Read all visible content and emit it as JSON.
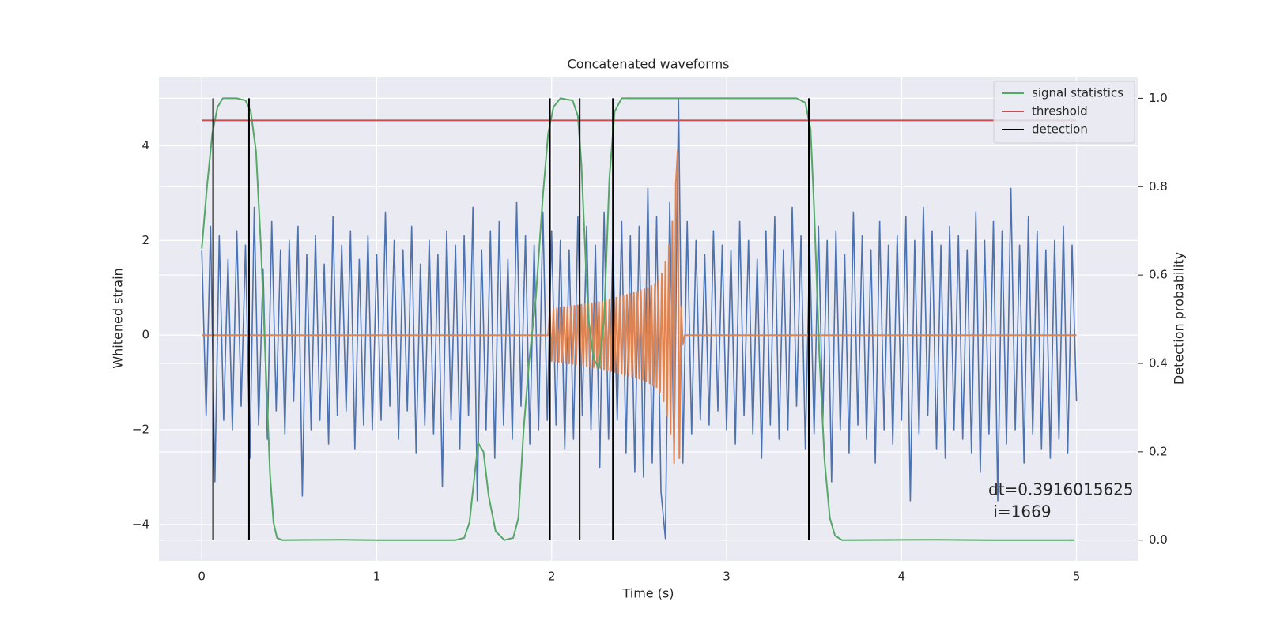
{
  "chart_data": {
    "type": "line",
    "title": "Concatenated waveforms",
    "xlabel": "Time (s)",
    "ylabel": "Whitened strain",
    "y2label": "Detection probability",
    "annotation": [
      "dt=0.3916015625",
      " i=1669"
    ],
    "xlim": [
      -0.245,
      5.35
    ],
    "xticks": [
      0,
      1,
      2,
      3,
      4,
      5
    ],
    "ylim": [
      -4.77,
      5.46
    ],
    "yticks": [
      {
        "value": -4,
        "label": "−4"
      },
      {
        "value": -2,
        "label": "−2"
      },
      0,
      2,
      4
    ],
    "y2lim": [
      -0.047,
      1.049
    ],
    "y2ticks": [
      {
        "value": 0,
        "label": "0.0"
      },
      0.2,
      0.4,
      0.6,
      0.8,
      {
        "value": 1,
        "label": "1.0"
      }
    ],
    "grid": true,
    "legend": "upper right",
    "series": [
      {
        "color": "#4c72b0",
        "x": [
          0,
          0.025,
          0.05,
          0.075,
          0.1,
          0.125,
          0.15,
          0.175,
          0.2,
          0.225,
          0.25,
          0.275,
          0.3,
          0.325,
          0.35,
          0.375,
          0.4,
          0.425,
          0.45,
          0.475,
          0.5,
          0.525,
          0.55,
          0.575,
          0.6,
          0.625,
          0.65,
          0.675,
          0.7,
          0.725,
          0.75,
          0.775,
          0.8,
          0.825,
          0.85,
          0.875,
          0.9,
          0.925,
          0.95,
          0.975,
          1,
          1.025,
          1.05,
          1.075,
          1.1,
          1.125,
          1.15,
          1.175,
          1.2,
          1.225,
          1.25,
          1.275,
          1.3,
          1.325,
          1.35,
          1.375,
          1.4,
          1.425,
          1.45,
          1.475,
          1.5,
          1.525,
          1.55,
          1.575,
          1.6,
          1.625,
          1.65,
          1.675,
          1.7,
          1.725,
          1.75,
          1.775,
          1.8,
          1.825,
          1.85,
          1.875,
          1.9,
          1.925,
          1.95,
          1.975,
          2,
          2.025,
          2.05,
          2.075,
          2.1,
          2.125,
          2.15,
          2.175,
          2.2,
          2.225,
          2.25,
          2.275,
          2.3,
          2.325,
          2.35,
          2.375,
          2.4,
          2.425,
          2.45,
          2.475,
          2.5,
          2.525,
          2.55,
          2.575,
          2.6,
          2.625,
          2.65,
          2.675,
          2.7,
          2.725,
          2.75,
          2.775,
          2.8,
          2.825,
          2.85,
          2.875,
          2.9,
          2.925,
          2.95,
          2.975,
          3,
          3.025,
          3.05,
          3.075,
          3.1,
          3.125,
          3.15,
          3.175,
          3.2,
          3.225,
          3.25,
          3.275,
          3.3,
          3.325,
          3.35,
          3.375,
          3.4,
          3.425,
          3.45,
          3.475,
          3.5,
          3.525,
          3.55,
          3.575,
          3.6,
          3.625,
          3.65,
          3.675,
          3.7,
          3.725,
          3.75,
          3.775,
          3.8,
          3.825,
          3.85,
          3.875,
          3.9,
          3.925,
          3.95,
          3.975,
          4,
          4.025,
          4.05,
          4.075,
          4.1,
          4.125,
          4.15,
          4.175,
          4.2,
          4.225,
          4.25,
          4.275,
          4.3,
          4.325,
          4.35,
          4.375,
          4.4,
          4.425,
          4.45,
          4.475,
          4.5,
          4.525,
          4.55,
          4.575,
          4.6,
          4.625,
          4.65,
          4.675,
          4.7,
          4.725,
          4.75,
          4.775,
          4.8,
          4.825,
          4.85,
          4.875,
          4.9,
          4.925,
          4.95,
          4.975,
          5
        ],
        "values": [
          1.8,
          -1.7,
          2.3,
          -3.1,
          2.1,
          -1.8,
          1.6,
          -2.0,
          2.2,
          -1.5,
          1.9,
          -2.6,
          2.7,
          -1.9,
          1.4,
          -2.2,
          2.4,
          -1.6,
          1.8,
          -2.1,
          2.0,
          -1.4,
          2.3,
          -3.4,
          1.7,
          -2.0,
          2.1,
          -1.8,
          1.5,
          -2.3,
          2.5,
          -1.7,
          1.9,
          -1.6,
          2.2,
          -2.4,
          1.6,
          -1.9,
          2.1,
          -2.0,
          1.7,
          -1.8,
          2.6,
          -1.5,
          2.0,
          -2.2,
          1.8,
          -1.6,
          2.3,
          -2.5,
          1.5,
          -1.9,
          2.0,
          -2.1,
          1.7,
          -3.2,
          2.2,
          -1.8,
          1.9,
          -2.4,
          2.1,
          -1.7,
          2.7,
          -3.5,
          1.8,
          -2.0,
          2.2,
          -2.6,
          2.4,
          -1.9,
          1.6,
          -2.2,
          2.8,
          -1.5,
          2.1,
          -2.3,
          1.9,
          -2.0,
          2.6,
          -1.8,
          2.2,
          -1.9,
          2.0,
          -2.4,
          1.8,
          -2.2,
          2.5,
          -1.7,
          2.3,
          -2.0,
          1.9,
          -2.8,
          2.6,
          -2.2,
          2.0,
          -1.8,
          2.4,
          -2.5,
          2.1,
          -2.9,
          2.3,
          -3.0,
          3.1,
          -2.7,
          2.5,
          -3.3,
          -4.3,
          2.8,
          -2.6,
          5.0,
          -2.7,
          2.4,
          -2.1,
          2.0,
          -1.8,
          1.7,
          -1.9,
          2.2,
          -1.6,
          1.9,
          -2.0,
          1.8,
          -2.3,
          2.4,
          -1.7,
          2.0,
          -2.1,
          1.6,
          -2.6,
          2.2,
          -1.9,
          2.5,
          -2.2,
          1.8,
          -2.0,
          2.7,
          -1.5,
          2.1,
          -2.4,
          1.9,
          -2.1,
          2.3,
          -1.8,
          2.0,
          -3.1,
          2.2,
          -2.0,
          1.7,
          -2.5,
          2.6,
          -1.9,
          2.1,
          -2.2,
          1.8,
          -2.7,
          2.4,
          -2.0,
          1.9,
          -2.3,
          2.1,
          -1.8,
          2.5,
          -3.5,
          2.0,
          -2.1,
          2.7,
          -1.7,
          2.2,
          -2.4,
          1.9,
          -2.6,
          2.3,
          -2.0,
          2.1,
          -2.2,
          1.8,
          -2.5,
          2.6,
          -2.9,
          2.0,
          -2.1,
          2.4,
          -3.5,
          2.2,
          -2.3,
          3.1,
          -2.0,
          1.9,
          -2.7,
          2.5,
          -2.1,
          2.2,
          -2.4,
          1.8,
          -2.6,
          2.0,
          -2.2,
          2.3,
          -2.5,
          1.9,
          -1.4
        ]
      },
      {
        "color": "#dd8452",
        "x": [
          0,
          1.98,
          1.99,
          2.0,
          2.01,
          2.02,
          2.03,
          2.04,
          2.05,
          2.06,
          2.07,
          2.08,
          2.09,
          2.1,
          2.11,
          2.12,
          2.13,
          2.14,
          2.15,
          2.16,
          2.17,
          2.18,
          2.19,
          2.2,
          2.21,
          2.22,
          2.23,
          2.24,
          2.25,
          2.26,
          2.27,
          2.28,
          2.29,
          2.3,
          2.31,
          2.32,
          2.33,
          2.34,
          2.35,
          2.36,
          2.37,
          2.38,
          2.39,
          2.4,
          2.41,
          2.42,
          2.43,
          2.44,
          2.45,
          2.46,
          2.47,
          2.48,
          2.49,
          2.5,
          2.51,
          2.52,
          2.53,
          2.54,
          2.55,
          2.56,
          2.57,
          2.58,
          2.59,
          2.6,
          2.61,
          2.62,
          2.63,
          2.64,
          2.65,
          2.66,
          2.67,
          2.68,
          2.69,
          2.7,
          2.71,
          2.72,
          2.73,
          2.74,
          2.75,
          2.76,
          5
        ],
        "values": [
          0,
          0,
          0.55,
          -0.55,
          0.56,
          -0.56,
          0.57,
          -0.57,
          0.58,
          -0.58,
          0.59,
          -0.59,
          0.6,
          -0.6,
          0.61,
          -0.61,
          0.62,
          -0.62,
          0.63,
          -0.63,
          0.64,
          -0.64,
          0.65,
          -0.66,
          0.66,
          -0.67,
          0.67,
          -0.68,
          0.68,
          -0.69,
          0.7,
          -0.7,
          0.71,
          -0.72,
          0.73,
          -0.74,
          0.75,
          -0.76,
          0.77,
          -0.78,
          0.79,
          -0.8,
          0.81,
          -0.82,
          0.83,
          -0.84,
          0.85,
          -0.86,
          0.87,
          -0.88,
          0.89,
          -0.9,
          0.91,
          -0.92,
          0.94,
          -0.95,
          0.97,
          -0.98,
          1.0,
          -1.02,
          1.04,
          -1.06,
          1.08,
          -1.1,
          1.15,
          -1.2,
          1.3,
          -1.4,
          1.55,
          -1.7,
          1.9,
          -2.1,
          2.4,
          -2.7,
          3.2,
          3.9,
          -2.6,
          0.6,
          -0.2,
          0,
          0
        ]
      },
      {
        "name": "signal statistics",
        "color": "#55a868",
        "axis": "y2",
        "x": [
          0,
          0.03,
          0.06,
          0.09,
          0.12,
          0.2,
          0.25,
          0.28,
          0.31,
          0.34,
          0.37,
          0.39,
          0.41,
          0.43,
          0.46,
          0.8,
          1.0,
          1.45,
          1.5,
          1.53,
          1.56,
          1.58,
          1.61,
          1.64,
          1.68,
          1.73,
          1.78,
          1.81,
          1.84,
          1.87,
          1.91,
          1.95,
          1.98,
          2.01,
          2.05,
          2.12,
          2.15,
          2.17,
          2.19,
          2.21,
          2.24,
          2.27,
          2.3,
          2.33,
          2.36,
          2.4,
          3.4,
          3.45,
          3.48,
          3.5,
          3.53,
          3.56,
          3.59,
          3.62,
          3.66,
          4.2,
          4.5,
          4.99
        ],
        "values": [
          0.66,
          0.8,
          0.92,
          0.98,
          1.0,
          1.0,
          0.995,
          0.97,
          0.88,
          0.65,
          0.35,
          0.15,
          0.04,
          0.005,
          0,
          0.001,
          0,
          0,
          0.005,
          0.04,
          0.15,
          0.22,
          0.2,
          0.1,
          0.02,
          0,
          0.005,
          0.05,
          0.25,
          0.4,
          0.55,
          0.78,
          0.92,
          0.98,
          1.0,
          0.995,
          0.96,
          0.85,
          0.67,
          0.5,
          0.41,
          0.39,
          0.5,
          0.82,
          0.97,
          1.0,
          1.0,
          0.99,
          0.93,
          0.75,
          0.42,
          0.18,
          0.05,
          0.01,
          0,
          0.001,
          0,
          0
        ]
      },
      {
        "name": "threshold",
        "color": "#c44e52",
        "axis": "y2",
        "x": [
          0,
          5
        ],
        "values": [
          0.95,
          0.95
        ]
      },
      {
        "name": "detection",
        "color": "#000000",
        "axis": "y2",
        "x": [
          0.065,
          0.27,
          1.99,
          2.16,
          2.35,
          3.47
        ]
      }
    ]
  }
}
